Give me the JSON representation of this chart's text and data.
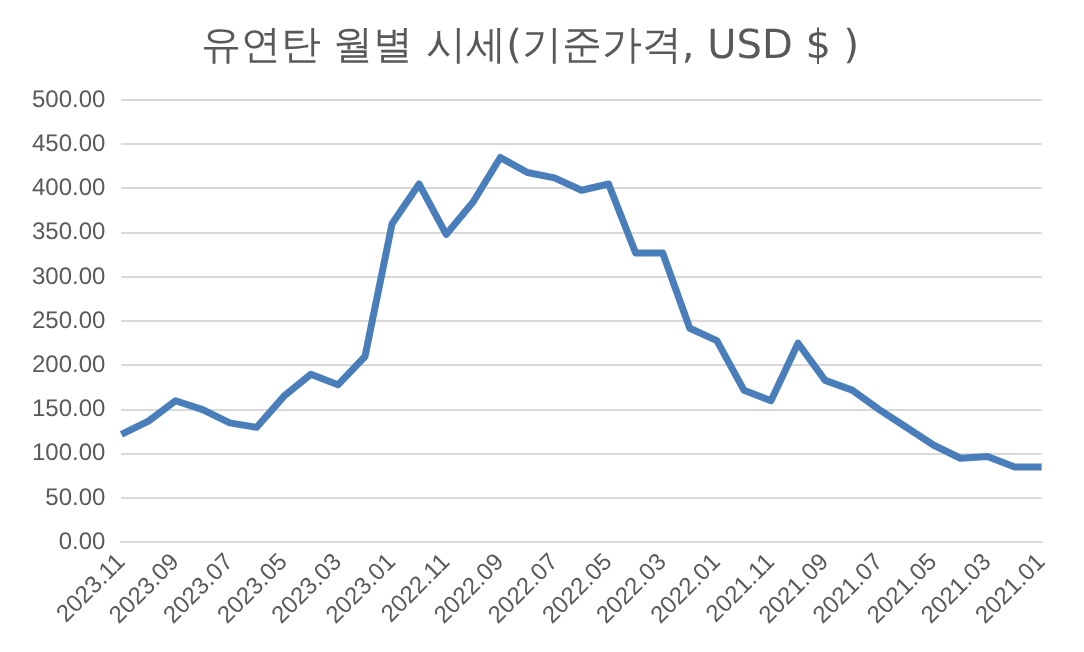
{
  "chart_data": {
    "type": "line",
    "title": "유연탄 월별 시세(기준가격, USD $ )",
    "categories": [
      "2023.11",
      null,
      "2023.09",
      null,
      "2023.07",
      null,
      "2023.05",
      null,
      "2023.03",
      null,
      "2023.01",
      null,
      "2022.11",
      null,
      "2022.09",
      null,
      "2022.07",
      null,
      "2022.05",
      null,
      "2022.03",
      null,
      "2022.01",
      null,
      "2021.11",
      null,
      "2021.09",
      null,
      "2021.07",
      null,
      "2021.05",
      null,
      "2021.03",
      null,
      "2021.01"
    ],
    "series": [
      {
        "color": "#4a7ebb",
        "values": [
          122,
          137,
          160,
          150,
          135,
          130,
          165,
          190,
          178,
          210,
          360,
          405,
          348,
          385,
          435,
          418,
          412,
          398,
          405,
          327,
          327,
          242,
          228,
          172,
          160,
          225,
          183,
          172,
          150,
          130,
          110,
          95,
          97,
          85,
          85
        ]
      }
    ],
    "ylim": [
      0,
      500
    ],
    "yticks": [
      {
        "value": 0,
        "label": "0.00"
      },
      {
        "value": 50,
        "label": "50.00"
      },
      {
        "value": 100,
        "label": "100.00"
      },
      {
        "value": 150,
        "label": "150.00"
      },
      {
        "value": 200,
        "label": "200.00"
      },
      {
        "value": 250,
        "label": "250.00"
      },
      {
        "value": 300,
        "label": "300.00"
      },
      {
        "value": 350,
        "label": "350.00"
      },
      {
        "value": 400,
        "label": "400.00"
      },
      {
        "value": 450,
        "label": "450.00"
      },
      {
        "value": 500,
        "label": "500.00"
      }
    ],
    "grid": "y",
    "legend": false,
    "marker": "none",
    "line_style": "solid"
  }
}
